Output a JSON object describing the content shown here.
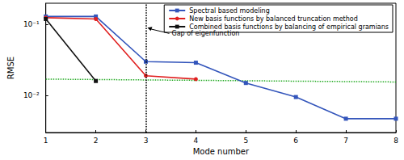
{
  "chart_data": {
    "type": "line",
    "x_label": "Mode number",
    "y_label": "RMSE",
    "x": [
      1,
      2,
      3,
      4,
      5,
      6,
      7,
      8
    ],
    "series": [
      {
        "name": "Spectral based modeling",
        "color": "#3355bb",
        "marker": "square",
        "values": [
          0.13,
          0.13,
          0.03,
          0.029,
          0.015,
          0.0095,
          0.0047,
          0.0047
        ]
      },
      {
        "name": "New basis functions by balanced truncation method",
        "color": "#e02020",
        "marker": "circle",
        "values": [
          0.125,
          0.12,
          0.019,
          0.017,
          null,
          null,
          null,
          null
        ]
      },
      {
        "name": "Combined basis functions by balancing of empirical gramians",
        "color": "#111111",
        "marker": "square",
        "values": [
          0.12,
          0.016,
          null,
          null,
          null,
          null,
          null,
          null
        ]
      }
    ],
    "threshold": {
      "color": "#22aa22",
      "line_style": "dotted",
      "x": [
        1,
        8
      ],
      "values": [
        0.017,
        0.0155
      ]
    },
    "annotations": [
      {
        "text": "Gap of eigenfunction",
        "x": 3,
        "y": 0.075
      }
    ],
    "xlim": [
      1,
      8
    ],
    "xticks": [
      1,
      2,
      3,
      4,
      5,
      6,
      7,
      8
    ],
    "ylim": [
      0.003,
      0.2
    ],
    "yticks": [
      {
        "value": 0.01,
        "label": "10⁻²"
      },
      {
        "value": 0.1,
        "label": "10⁻¹"
      }
    ],
    "log": "y",
    "grid": false,
    "legend": "top-right"
  }
}
